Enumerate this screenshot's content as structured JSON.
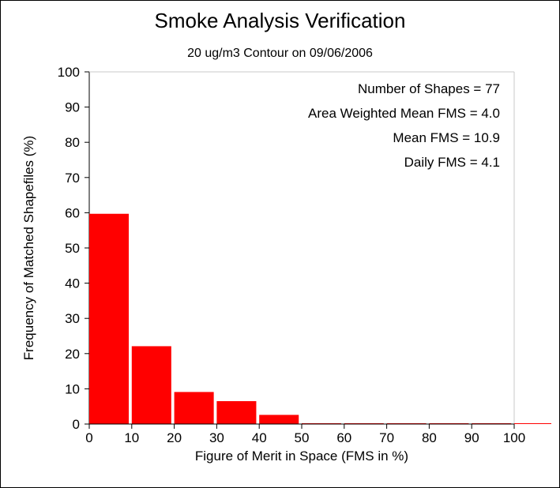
{
  "chart_data": {
    "type": "bar",
    "title": "Smoke Analysis Verification",
    "subtitle": "20 ug/m3 Contour on 09/06/2006",
    "xlabel": "Figure of Merit in Space (FMS in %)",
    "ylabel": "Frequency of Matched Shapefiles (%)",
    "xlim": [
      0,
      100
    ],
    "ylim": [
      0,
      100
    ],
    "x_ticks": [
      "0",
      "10",
      "20",
      "30",
      "40",
      "50",
      "60",
      "70",
      "80",
      "90",
      "100"
    ],
    "y_ticks": [
      "0",
      "10",
      "20",
      "30",
      "40",
      "50",
      "60",
      "70",
      "80",
      "90",
      "100"
    ],
    "bins": [
      {
        "from": 0,
        "to": 9.3,
        "value": 59.7
      },
      {
        "from": 10,
        "to": 19.3,
        "value": 22.1
      },
      {
        "from": 20,
        "to": 29.3,
        "value": 9.1
      },
      {
        "from": 30,
        "to": 39.3,
        "value": 6.5
      },
      {
        "from": 40,
        "to": 49.3,
        "value": 2.6
      },
      {
        "from": 50,
        "to": 59.3,
        "value": 0
      },
      {
        "from": 60,
        "to": 69.3,
        "value": 0
      },
      {
        "from": 70,
        "to": 79.3,
        "value": 0
      },
      {
        "from": 80,
        "to": 89.3,
        "value": 0
      },
      {
        "from": 90,
        "to": 99.3,
        "value": 0
      }
    ],
    "bar_color": "#ff0000",
    "grid": false,
    "annotations": [
      "Number of Shapes = 77",
      "Area Weighted Mean FMS = 4.0",
      "Mean FMS = 10.9",
      "Daily FMS = 4.1"
    ]
  }
}
